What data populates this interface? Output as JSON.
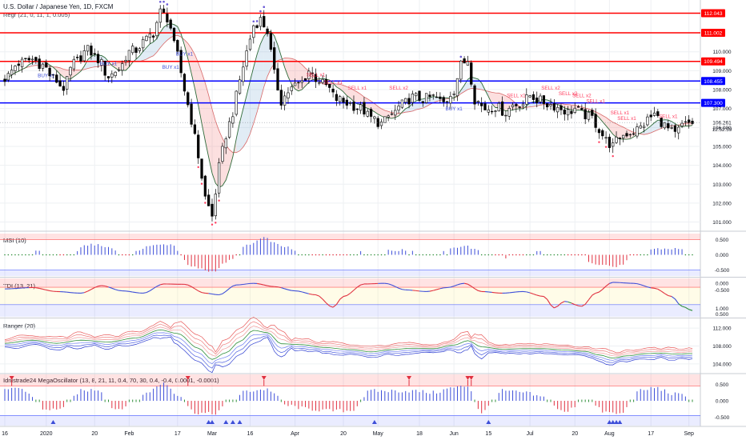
{
  "header": {
    "title": "U.S. Dollar / Japanese Yen, 1D, FXCM",
    "indicator": "Regr (21, 0, 11, 1, 0.005)"
  },
  "colors": {
    "up": "#ffffff",
    "down": "#000000",
    "wick": "#000000",
    "red_level": "#ff0000",
    "blue_level": "#0000ff",
    "buy": "#3d4ed8",
    "sell": "#ff3d5e",
    "grid": "#eef0f3"
  },
  "chart_data": [
    {
      "type": "candlestick",
      "pane": "price",
      "title": "U.S. Dollar / Japanese Yen, 1D, FXCM",
      "ylim": [
        100.6,
        112.4
      ],
      "yticks": [
        101.0,
        102.0,
        103.0,
        104.0,
        105.0,
        106.0,
        107.0,
        108.0,
        109.0,
        110.0
      ],
      "levels": [
        {
          "value": 112.043,
          "label": "112.043",
          "color": "#ff0000"
        },
        {
          "value": 111.002,
          "label": "111.002",
          "color": "#ff0000"
        },
        {
          "value": 109.494,
          "label": "109.494",
          "color": "#ff0000"
        },
        {
          "value": 108.455,
          "label": "108.455",
          "color": "#0000ff"
        },
        {
          "value": 107.3,
          "label": "107.300",
          "color": "#0000ff"
        }
      ],
      "last_price": {
        "value": 106.261,
        "label": "106.261",
        "countdown": "12:52:59"
      },
      "signals": [
        {
          "label": "BUY x1",
          "value": 108.65,
          "day": 12,
          "kind": "buy"
        },
        {
          "label": "BUY x1",
          "value": 109.3,
          "day": 30,
          "kind": "buy"
        },
        {
          "label": "BUY x1",
          "value": 109.1,
          "day": 48,
          "kind": "buy"
        },
        {
          "label": "BUY x1",
          "value": 109.8,
          "day": 52,
          "kind": "buy"
        },
        {
          "label": "SELL x1",
          "value": 108.7,
          "day": 90,
          "kind": "sell"
        },
        {
          "label": "SELL x1",
          "value": 108.3,
          "day": 95,
          "kind": "sell"
        },
        {
          "label": "SELL x1",
          "value": 108.0,
          "day": 102,
          "kind": "sell"
        },
        {
          "label": "SELL x2",
          "value": 108.0,
          "day": 114,
          "kind": "sell"
        },
        {
          "label": "BUY x1",
          "value": 106.9,
          "day": 130,
          "kind": "buy"
        },
        {
          "label": "SELL x1",
          "value": 107.6,
          "day": 148,
          "kind": "sell"
        },
        {
          "label": "SELL x2",
          "value": 108.0,
          "day": 158,
          "kind": "sell"
        },
        {
          "label": "SELL x2",
          "value": 107.7,
          "day": 163,
          "kind": "sell"
        },
        {
          "label": "SELL x2",
          "value": 107.6,
          "day": 167,
          "kind": "sell"
        },
        {
          "label": "SELL x1",
          "value": 107.3,
          "day": 171,
          "kind": "sell"
        },
        {
          "label": "SELL x1",
          "value": 106.7,
          "day": 178,
          "kind": "sell"
        },
        {
          "label": "SELL x1",
          "value": 106.4,
          "day": 180,
          "kind": "sell"
        },
        {
          "label": "SELL x1",
          "value": 106.5,
          "day": 192,
          "kind": "sell"
        }
      ],
      "anchors": [
        [
          0,
          108.6
        ],
        [
          4,
          109.4
        ],
        [
          8,
          109.6
        ],
        [
          11,
          109.3
        ],
        [
          14,
          108.6
        ],
        [
          17,
          108.1
        ],
        [
          20,
          109.4
        ],
        [
          24,
          110.1
        ],
        [
          27,
          109.6
        ],
        [
          30,
          108.7
        ],
        [
          33,
          109.1
        ],
        [
          36,
          110.0
        ],
        [
          38,
          110.1
        ],
        [
          40,
          110.5
        ],
        [
          43,
          111.0
        ],
        [
          45,
          112.1
        ],
        [
          47,
          111.8
        ],
        [
          50,
          109.8
        ],
        [
          52,
          108.0
        ],
        [
          54,
          106.4
        ],
        [
          56,
          104.5
        ],
        [
          58,
          102.3
        ],
        [
          60,
          101.3
        ],
        [
          62,
          103.9
        ],
        [
          64,
          105.6
        ],
        [
          66,
          106.8
        ],
        [
          68,
          108.5
        ],
        [
          70,
          110.0
        ],
        [
          72,
          111.4
        ],
        [
          74,
          111.7
        ],
        [
          76,
          111.1
        ],
        [
          78,
          108.8
        ],
        [
          80,
          107.4
        ],
        [
          82,
          107.9
        ],
        [
          84,
          108.2
        ],
        [
          86,
          108.4
        ],
        [
          88,
          109.0
        ],
        [
          90,
          108.6
        ],
        [
          93,
          108.2
        ],
        [
          96,
          107.5
        ],
        [
          99,
          107.3
        ],
        [
          103,
          107.0
        ],
        [
          106,
          106.5
        ],
        [
          109,
          106.2
        ],
        [
          112,
          106.7
        ],
        [
          115,
          107.2
        ],
        [
          118,
          107.6
        ],
        [
          121,
          107.5
        ],
        [
          124,
          107.6
        ],
        [
          127,
          107.3
        ],
        [
          130,
          108.0
        ],
        [
          132,
          109.3
        ],
        [
          134,
          109.6
        ],
        [
          136,
          107.5
        ],
        [
          139,
          107.0
        ],
        [
          142,
          107.1
        ],
        [
          145,
          106.8
        ],
        [
          147,
          107.2
        ],
        [
          150,
          107.3
        ],
        [
          152,
          107.7
        ],
        [
          155,
          107.4
        ],
        [
          158,
          107.2
        ],
        [
          161,
          107.0
        ],
        [
          163,
          106.8
        ],
        [
          165,
          107.0
        ],
        [
          167,
          106.7
        ],
        [
          170,
          106.5
        ],
        [
          172,
          105.9
        ],
        [
          174,
          105.3
        ],
        [
          176,
          105.0
        ],
        [
          178,
          105.5
        ],
        [
          180,
          105.7
        ],
        [
          182,
          105.8
        ],
        [
          184,
          106.0
        ],
        [
          186,
          106.4
        ],
        [
          188,
          106.7
        ],
        [
          190,
          106.3
        ],
        [
          192,
          105.9
        ],
        [
          194,
          105.6
        ],
        [
          196,
          106.1
        ],
        [
          199,
          106.26
        ]
      ],
      "x_ticks": [
        {
          "label": "16",
          "day": 0
        },
        {
          "label": "2020",
          "day": 12
        },
        {
          "label": "20",
          "day": 26
        },
        {
          "label": "Feb",
          "day": 36
        },
        {
          "label": "17",
          "day": 50
        },
        {
          "label": "Mar",
          "day": 60
        },
        {
          "label": "16",
          "day": 71
        },
        {
          "label": "Apr",
          "day": 84
        },
        {
          "label": "20",
          "day": 98
        },
        {
          "label": "May",
          "day": 108
        },
        {
          "label": "18",
          "day": 120
        },
        {
          "label": "Jun",
          "day": 130
        },
        {
          "label": "15",
          "day": 140
        },
        {
          "label": "Jul",
          "day": 152
        },
        {
          "label": "20",
          "day": 165
        },
        {
          "label": "Aug",
          "day": 175
        },
        {
          "label": "17",
          "day": 187
        },
        {
          "label": "Sep",
          "day": 198
        }
      ]
    },
    {
      "type": "bar",
      "pane": "msi",
      "title": "MSI (10)",
      "ylim": [
        -0.7,
        0.7
      ],
      "yticks": [
        {
          "label": "0.500",
          "value": 0.5
        },
        {
          "label": "0.000",
          "value": 0.0
        },
        {
          "label": "-0.500",
          "value": -0.5
        }
      ],
      "bands": [
        0.5,
        -0.5
      ],
      "anchors": [
        [
          0,
          0.05
        ],
        [
          10,
          0.1
        ],
        [
          18,
          0.0
        ],
        [
          25,
          0.35
        ],
        [
          30,
          0.25
        ],
        [
          35,
          -0.05
        ],
        [
          42,
          0.3
        ],
        [
          48,
          0.35
        ],
        [
          54,
          -0.4
        ],
        [
          60,
          -0.55
        ],
        [
          65,
          -0.2
        ],
        [
          70,
          0.3
        ],
        [
          75,
          0.55
        ],
        [
          80,
          0.3
        ],
        [
          86,
          0.05
        ],
        [
          95,
          -0.05
        ],
        [
          105,
          0.1
        ],
        [
          115,
          0.15
        ],
        [
          125,
          0.05
        ],
        [
          133,
          0.3
        ],
        [
          138,
          0.1
        ],
        [
          145,
          -0.1
        ],
        [
          155,
          0.1
        ],
        [
          165,
          -0.05
        ],
        [
          172,
          -0.3
        ],
        [
          177,
          -0.4
        ],
        [
          182,
          -0.1
        ],
        [
          188,
          0.2
        ],
        [
          194,
          0.2
        ],
        [
          199,
          0.1
        ]
      ]
    },
    {
      "type": "line",
      "pane": "tdi",
      "title": "TDI (13, 21)",
      "ylim": [
        -0.17,
        1.0
      ],
      "yticks": [
        {
          "label": "0.500",
          "value": 0.5
        },
        {
          "label": "1.000",
          "value": 1.0
        },
        {
          "label": "-0.500",
          "value": -0.5
        },
        {
          "label": "0.000",
          "value": 0.0
        }
      ],
      "tick_positions": [
        0.93,
        0.78,
        0.3,
        0.13
      ],
      "bands": [
        0.73,
        0.2
      ],
      "anchors": [
        [
          0,
          0.68
        ],
        [
          8,
          0.72
        ],
        [
          15,
          0.6
        ],
        [
          22,
          0.55
        ],
        [
          28,
          0.78
        ],
        [
          34,
          0.62
        ],
        [
          40,
          0.55
        ],
        [
          46,
          0.83
        ],
        [
          52,
          0.82
        ],
        [
          58,
          0.55
        ],
        [
          62,
          0.5
        ],
        [
          67,
          0.8
        ],
        [
          72,
          0.85
        ],
        [
          78,
          0.75
        ],
        [
          84,
          0.62
        ],
        [
          90,
          0.5
        ],
        [
          95,
          0.12
        ],
        [
          98,
          0.45
        ],
        [
          104,
          0.83
        ],
        [
          110,
          0.85
        ],
        [
          116,
          0.65
        ],
        [
          122,
          0.6
        ],
        [
          128,
          0.72
        ],
        [
          133,
          0.85
        ],
        [
          138,
          0.6
        ],
        [
          144,
          0.55
        ],
        [
          150,
          0.6
        ],
        [
          156,
          0.45
        ],
        [
          159,
          0.1
        ],
        [
          162,
          0.3
        ],
        [
          167,
          0.15
        ],
        [
          171,
          0.55
        ],
        [
          176,
          0.88
        ],
        [
          182,
          0.85
        ],
        [
          188,
          0.7
        ],
        [
          193,
          0.45
        ],
        [
          196,
          0.15
        ],
        [
          199,
          0.02
        ]
      ]
    },
    {
      "type": "line",
      "pane": "ranger",
      "title": "Ranger (20)",
      "ylim": [
        102.0,
        114.0
      ],
      "yticks": [
        {
          "label": "112.000",
          "value": 112.0
        },
        {
          "label": "108.000",
          "value": 108.0
        },
        {
          "label": "104.000",
          "value": 104.0
        }
      ],
      "anchors": [
        [
          0,
          108.6
        ],
        [
          8,
          109.3
        ],
        [
          15,
          108.6
        ],
        [
          22,
          109.3
        ],
        [
          30,
          108.9
        ],
        [
          38,
          109.8
        ],
        [
          45,
          111.6
        ],
        [
          50,
          110.8
        ],
        [
          56,
          107.5
        ],
        [
          60,
          105.0
        ],
        [
          64,
          106.5
        ],
        [
          68,
          109.0
        ],
        [
          72,
          111.5
        ],
        [
          76,
          111.0
        ],
        [
          80,
          108.5
        ],
        [
          86,
          108.3
        ],
        [
          92,
          107.7
        ],
        [
          100,
          107.2
        ],
        [
          106,
          106.7
        ],
        [
          112,
          107.2
        ],
        [
          118,
          107.5
        ],
        [
          124,
          107.4
        ],
        [
          130,
          108.2
        ],
        [
          134,
          109.2
        ],
        [
          138,
          107.8
        ],
        [
          144,
          107.3
        ],
        [
          150,
          107.4
        ],
        [
          156,
          107.4
        ],
        [
          162,
          107.1
        ],
        [
          168,
          106.8
        ],
        [
          172,
          106.0
        ],
        [
          176,
          105.3
        ],
        [
          180,
          105.8
        ],
        [
          186,
          106.3
        ],
        [
          190,
          106.4
        ],
        [
          194,
          106.2
        ],
        [
          199,
          106.3
        ]
      ]
    },
    {
      "type": "bar",
      "pane": "megaoscillator",
      "title": "Idnistrade24 MegaOscillator (13, 8, 21, 11, 0.4, 70, 30, 0.4, -0.4, 0.0001, -0.0001)",
      "ylim": [
        -0.75,
        0.8
      ],
      "yticks": [
        {
          "label": "0.500",
          "value": 0.5
        },
        {
          "label": "0.000",
          "value": 0.0
        },
        {
          "label": "-0.500",
          "value": -0.5
        }
      ],
      "bands": [
        0.45,
        -0.45
      ],
      "anchors": [
        [
          0,
          0.3
        ],
        [
          4,
          0.4
        ],
        [
          8,
          0.15
        ],
        [
          12,
          -0.3
        ],
        [
          17,
          -0.2
        ],
        [
          22,
          0.3
        ],
        [
          27,
          0.35
        ],
        [
          32,
          -0.25
        ],
        [
          37,
          -0.1
        ],
        [
          42,
          0.3
        ],
        [
          46,
          0.55
        ],
        [
          50,
          0.2
        ],
        [
          55,
          -0.35
        ],
        [
          60,
          -0.4
        ],
        [
          65,
          -0.1
        ],
        [
          70,
          0.3
        ],
        [
          76,
          0.35
        ],
        [
          82,
          -0.15
        ],
        [
          88,
          -0.25
        ],
        [
          94,
          -0.3
        ],
        [
          100,
          -0.3
        ],
        [
          106,
          0.3
        ],
        [
          112,
          0.3
        ],
        [
          118,
          0.3
        ],
        [
          124,
          0.25
        ],
        [
          130,
          0.4
        ],
        [
          134,
          0.45
        ],
        [
          138,
          -0.35
        ],
        [
          144,
          0.3
        ],
        [
          150,
          0.25
        ],
        [
          156,
          0.1
        ],
        [
          162,
          -0.35
        ],
        [
          168,
          0.05
        ],
        [
          174,
          -0.35
        ],
        [
          178,
          -0.4
        ],
        [
          184,
          0.3
        ],
        [
          188,
          0.4
        ],
        [
          194,
          0.2
        ],
        [
          199,
          0.1
        ]
      ],
      "markers": [
        {
          "day": 2,
          "kind": "down"
        },
        {
          "day": 14,
          "kind": "up"
        },
        {
          "day": 53,
          "kind": "down"
        },
        {
          "day": 59,
          "kind": "up"
        },
        {
          "day": 60,
          "kind": "up"
        },
        {
          "day": 64,
          "kind": "up"
        },
        {
          "day": 66,
          "kind": "up"
        },
        {
          "day": 68,
          "kind": "up"
        },
        {
          "day": 75,
          "kind": "down"
        },
        {
          "day": 107,
          "kind": "up"
        },
        {
          "day": 117,
          "kind": "down"
        },
        {
          "day": 134,
          "kind": "down"
        },
        {
          "day": 135,
          "kind": "down"
        },
        {
          "day": 140,
          "kind": "up"
        },
        {
          "day": 175,
          "kind": "up"
        },
        {
          "day": 176,
          "kind": "up"
        },
        {
          "day": 177,
          "kind": "up"
        },
        {
          "day": 178,
          "kind": "up"
        }
      ]
    }
  ]
}
